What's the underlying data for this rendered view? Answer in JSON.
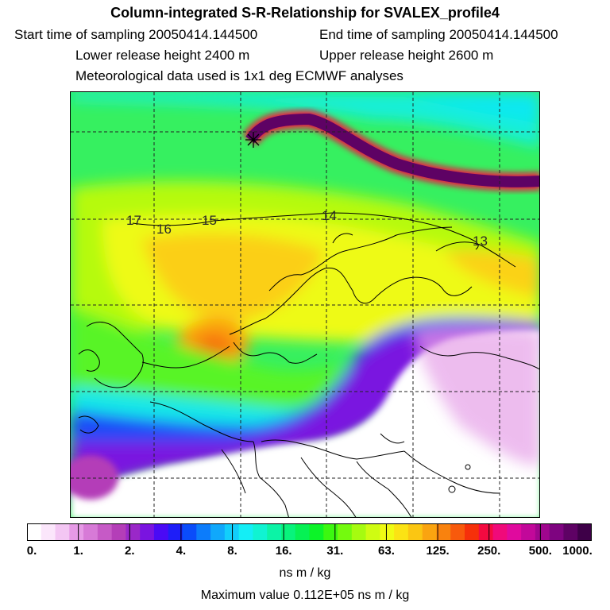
{
  "header": {
    "title": "Column-integrated S-R-Relationship for SVALEX_profile4",
    "start_time": "Start time of sampling 20050414.144500",
    "end_time": "End time of sampling 20050414.144500",
    "lower_release": "Lower release height 2400 m",
    "upper_release": "Upper release height 2600 m",
    "meteo": "Meteorological data used is 1x1 deg ECMWF analyses"
  },
  "map": {
    "trajectory_labels": [
      "17",
      "16",
      "15",
      "14",
      "13"
    ]
  },
  "colorbar": {
    "labels": [
      "0.",
      "1.",
      "2.",
      "4.",
      "8.",
      "16.",
      "31.",
      "63.",
      "125.",
      "250.",
      "500.",
      "1000."
    ],
    "colors": [
      "#ffffff",
      "#fbe6fb",
      "#f3c6f3",
      "#e69ae6",
      "#d77ad7",
      "#c65ac6",
      "#b43eb8",
      "#9a28c8",
      "#7a14e0",
      "#4a0af5",
      "#1e1ef8",
      "#0a4cfa",
      "#0c7cfb",
      "#10a8fb",
      "#12cefb",
      "#14eef6",
      "#10f3d2",
      "#0cf3a6",
      "#08f37c",
      "#06f154",
      "#0cf428",
      "#3cf810",
      "#74fa0e",
      "#a6fb10",
      "#cffc12",
      "#f0fb14",
      "#fbe314",
      "#fbc612",
      "#faa410",
      "#f9820e",
      "#f85a0c",
      "#f6300a",
      "#f40a40",
      "#f00a7a",
      "#e00a9e",
      "#c2089a",
      "#a0068e",
      "#7e0480",
      "#5e0264",
      "#3e0048"
    ],
    "units": "ns m / kg",
    "max_value": "Maximum value  0.112E+05 ns m / kg"
  }
}
